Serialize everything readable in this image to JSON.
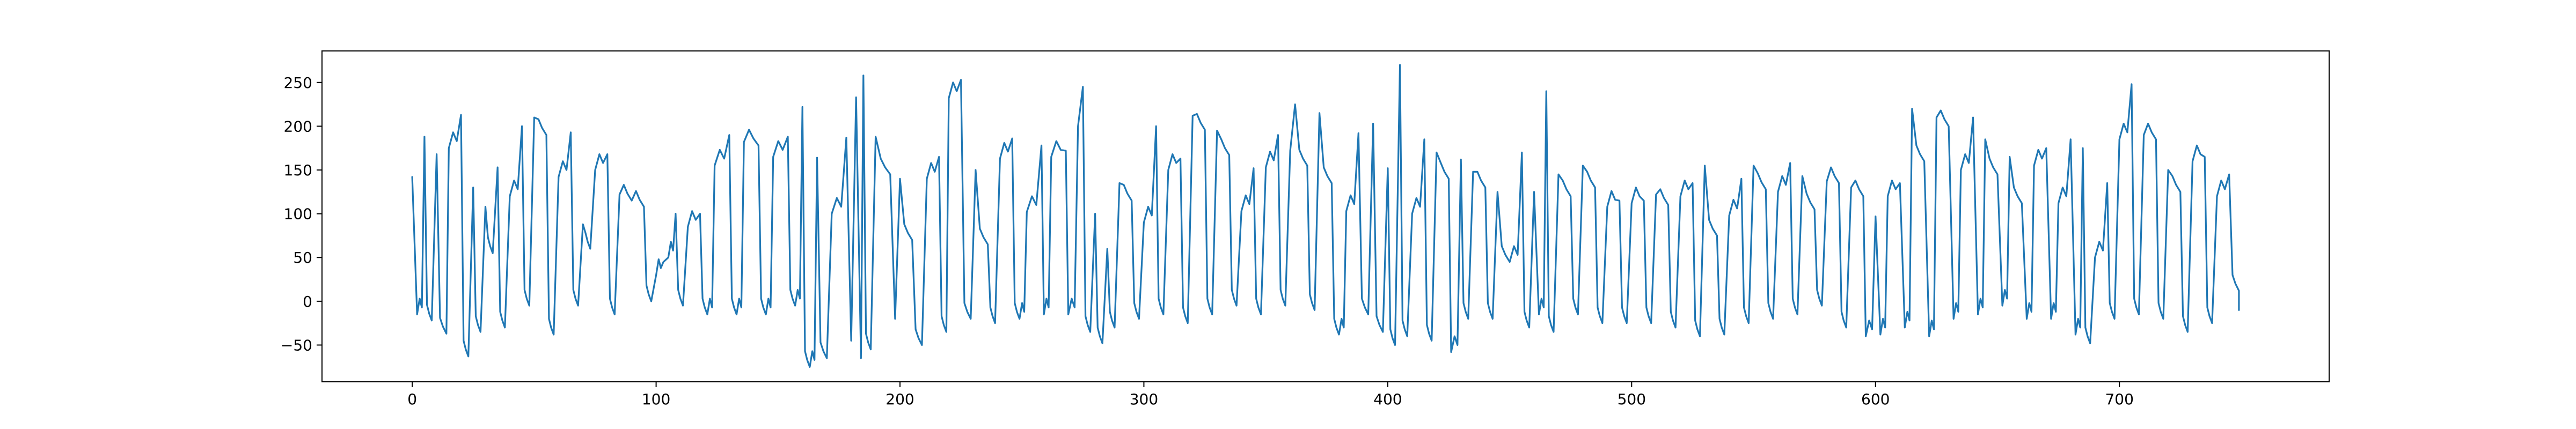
{
  "chart_data": {
    "type": "line",
    "title": "",
    "xlabel": "",
    "ylabel": "",
    "xlim": [
      -37,
      786
    ],
    "ylim": [
      -92,
      286
    ],
    "x_ticks": [
      0,
      100,
      200,
      300,
      400,
      500,
      600,
      700
    ],
    "y_ticks": [
      -50,
      0,
      50,
      100,
      150,
      200,
      250
    ],
    "x_tick_labels": [
      "0",
      "100",
      "200",
      "300",
      "400",
      "500",
      "600",
      "700"
    ],
    "y_tick_labels": [
      "−50",
      "0",
      "50",
      "100",
      "150",
      "200",
      "250"
    ],
    "grid": false,
    "legend": "none",
    "colors": {
      "series": "#1f77b4",
      "axes": "#000000",
      "background": "#ffffff"
    },
    "series": [
      {
        "color": "#1f77b4",
        "x_start": 0,
        "x_step": 1,
        "peaks": [
          [
            0,
            142
          ],
          [
            5,
            188
          ],
          [
            10,
            168
          ],
          [
            15,
            175
          ],
          [
            20,
            213
          ],
          [
            25,
            130
          ],
          [
            30,
            108
          ],
          [
            33,
            55
          ],
          [
            35,
            153
          ],
          [
            40,
            120
          ],
          [
            45,
            200
          ],
          [
            50,
            210
          ],
          [
            55,
            190
          ],
          [
            60,
            142
          ],
          [
            65,
            193
          ],
          [
            70,
            88
          ],
          [
            73,
            60
          ],
          [
            75,
            150
          ],
          [
            80,
            168
          ],
          [
            85,
            122
          ],
          [
            90,
            115
          ],
          [
            95,
            108
          ],
          [
            100,
            30
          ],
          [
            103,
            45
          ],
          [
            105,
            50
          ],
          [
            108,
            100
          ],
          [
            113,
            85
          ],
          [
            118,
            100
          ],
          [
            124,
            155
          ],
          [
            130,
            190
          ],
          [
            136,
            182
          ],
          [
            142,
            178
          ],
          [
            148,
            165
          ],
          [
            154,
            188
          ],
          [
            160,
            222
          ],
          [
            166,
            164
          ],
          [
            172,
            100
          ],
          [
            178,
            187
          ],
          [
            182,
            233
          ],
          [
            185,
            258
          ],
          [
            190,
            188
          ],
          [
            196,
            145
          ],
          [
            200,
            140
          ],
          [
            205,
            70
          ],
          [
            211,
            140
          ],
          [
            216,
            165
          ],
          [
            220,
            232
          ],
          [
            225,
            253
          ],
          [
            231,
            150
          ],
          [
            236,
            65
          ],
          [
            241,
            163
          ],
          [
            246,
            186
          ],
          [
            252,
            102
          ],
          [
            258,
            178
          ],
          [
            262,
            165
          ],
          [
            268,
            172
          ],
          [
            273,
            200
          ],
          [
            275,
            245
          ],
          [
            280,
            100
          ],
          [
            285,
            60
          ],
          [
            290,
            135
          ],
          [
            295,
            115
          ],
          [
            300,
            90
          ],
          [
            305,
            200
          ],
          [
            310,
            150
          ],
          [
            315,
            163
          ],
          [
            320,
            212
          ],
          [
            325,
            196
          ],
          [
            330,
            195
          ],
          [
            335,
            167
          ],
          [
            340,
            103
          ],
          [
            345,
            152
          ],
          [
            350,
            153
          ],
          [
            355,
            190
          ],
          [
            360,
            172
          ],
          [
            362,
            225
          ],
          [
            367,
            155
          ],
          [
            372,
            215
          ],
          [
            377,
            135
          ],
          [
            383,
            103
          ],
          [
            388,
            192
          ],
          [
            394,
            203
          ],
          [
            400,
            152
          ],
          [
            405,
            270
          ],
          [
            410,
            100
          ],
          [
            415,
            185
          ],
          [
            420,
            170
          ],
          [
            425,
            140
          ],
          [
            430,
            162
          ],
          [
            435,
            148
          ],
          [
            440,
            130
          ],
          [
            445,
            125
          ],
          [
            450,
            45
          ],
          [
            455,
            170
          ],
          [
            460,
            125
          ],
          [
            465,
            240
          ],
          [
            470,
            145
          ],
          [
            475,
            120
          ],
          [
            480,
            155
          ],
          [
            485,
            130
          ],
          [
            490,
            108
          ],
          [
            495,
            115
          ],
          [
            500,
            112
          ],
          [
            505,
            115
          ],
          [
            510,
            122
          ],
          [
            515,
            110
          ],
          [
            520,
            120
          ],
          [
            525,
            135
          ],
          [
            530,
            155
          ],
          [
            535,
            75
          ],
          [
            540,
            98
          ],
          [
            545,
            140
          ],
          [
            550,
            155
          ],
          [
            555,
            128
          ],
          [
            560,
            125
          ],
          [
            565,
            158
          ],
          [
            570,
            143
          ],
          [
            575,
            105
          ],
          [
            580,
            137
          ],
          [
            585,
            135
          ],
          [
            590,
            130
          ],
          [
            595,
            120
          ],
          [
            600,
            97
          ],
          [
            605,
            120
          ],
          [
            610,
            135
          ],
          [
            615,
            220
          ],
          [
            620,
            160
          ],
          [
            625,
            210
          ],
          [
            630,
            200
          ],
          [
            635,
            150
          ],
          [
            640,
            210
          ],
          [
            645,
            185
          ],
          [
            650,
            145
          ],
          [
            655,
            165
          ],
          [
            660,
            112
          ],
          [
            665,
            155
          ],
          [
            670,
            175
          ],
          [
            675,
            112
          ],
          [
            680,
            185
          ],
          [
            685,
            175
          ],
          [
            690,
            50
          ],
          [
            695,
            135
          ],
          [
            700,
            185
          ],
          [
            705,
            248
          ],
          [
            710,
            190
          ],
          [
            715,
            185
          ],
          [
            720,
            150
          ],
          [
            725,
            125
          ],
          [
            730,
            160
          ],
          [
            735,
            165
          ],
          [
            740,
            120
          ],
          [
            745,
            145
          ],
          [
            749,
            12
          ]
        ],
        "troughs": [
          [
            2,
            -15
          ],
          [
            8,
            -22
          ],
          [
            14,
            -37
          ],
          [
            23,
            -63
          ],
          [
            28,
            -35
          ],
          [
            38,
            -30
          ],
          [
            48,
            -5
          ],
          [
            58,
            -38
          ],
          [
            68,
            -5
          ],
          [
            83,
            -15
          ],
          [
            98,
            0
          ],
          [
            111,
            -5
          ],
          [
            121,
            -15
          ],
          [
            133,
            -15
          ],
          [
            145,
            -15
          ],
          [
            157,
            -5
          ],
          [
            163,
            -75
          ],
          [
            170,
            -65
          ],
          [
            180,
            -45
          ],
          [
            184,
            -65
          ],
          [
            188,
            -55
          ],
          [
            198,
            -20
          ],
          [
            209,
            -50
          ],
          [
            219,
            -35
          ],
          [
            229,
            -20
          ],
          [
            239,
            -25
          ],
          [
            249,
            -20
          ],
          [
            259,
            -15
          ],
          [
            269,
            -15
          ],
          [
            278,
            -35
          ],
          [
            283,
            -48
          ],
          [
            288,
            -30
          ],
          [
            298,
            -20
          ],
          [
            308,
            -15
          ],
          [
            318,
            -25
          ],
          [
            328,
            -15
          ],
          [
            338,
            -5
          ],
          [
            348,
            -15
          ],
          [
            358,
            -5
          ],
          [
            370,
            -10
          ],
          [
            380,
            -38
          ],
          [
            392,
            -15
          ],
          [
            398,
            -35
          ],
          [
            403,
            -50
          ],
          [
            408,
            -40
          ],
          [
            418,
            -45
          ],
          [
            426,
            -58
          ],
          [
            433,
            -20
          ],
          [
            443,
            -20
          ],
          [
            458,
            -30
          ],
          [
            462,
            -15
          ],
          [
            468,
            -35
          ],
          [
            478,
            -15
          ],
          [
            488,
            -25
          ],
          [
            498,
            -25
          ],
          [
            508,
            -25
          ],
          [
            518,
            -30
          ],
          [
            528,
            -40
          ],
          [
            538,
            -38
          ],
          [
            548,
            -25
          ],
          [
            558,
            -20
          ],
          [
            568,
            -15
          ],
          [
            578,
            -5
          ],
          [
            588,
            -30
          ],
          [
            596,
            -40
          ],
          [
            602,
            -38
          ],
          [
            612,
            -30
          ],
          [
            622,
            -40
          ],
          [
            632,
            -20
          ],
          [
            642,
            -15
          ],
          [
            652,
            -5
          ],
          [
            662,
            -20
          ],
          [
            672,
            -20
          ],
          [
            682,
            -38
          ],
          [
            688,
            -48
          ],
          [
            698,
            -20
          ],
          [
            708,
            -15
          ],
          [
            718,
            -20
          ],
          [
            728,
            -35
          ],
          [
            738,
            -25
          ],
          [
            749,
            -10
          ]
        ]
      }
    ]
  }
}
